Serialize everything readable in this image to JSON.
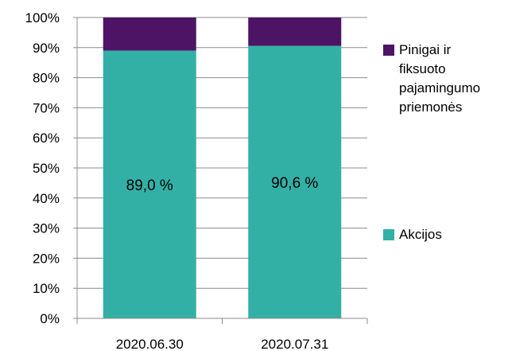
{
  "chart_data": {
    "type": "bar",
    "stacked": true,
    "percent_stacked": true,
    "categories": [
      "2020.06.30",
      "2020.07.31"
    ],
    "series": [
      {
        "name": "Akcijos",
        "values": [
          89.0,
          90.6
        ],
        "color": "#33b0a6",
        "labels": [
          "89,0 %",
          "90,6 %"
        ]
      },
      {
        "name": "Pinigai ir fiksuoto pajamingumo priemonės",
        "values": [
          11.0,
          9.4
        ],
        "color": "#4d1466"
      }
    ],
    "ylim": [
      0,
      100
    ],
    "yticks": [
      "0%",
      "10%",
      "20%",
      "30%",
      "40%",
      "50%",
      "60%",
      "70%",
      "80%",
      "90%",
      "100%"
    ],
    "grid": true,
    "legend": {
      "position": "right",
      "entries": [
        {
          "series": 1,
          "lines": [
            "Pinigai ir",
            "fiksuoto",
            "pajamingumo",
            "priemonės"
          ]
        },
        {
          "series": 0,
          "lines": [
            "Akcijos"
          ]
        }
      ]
    }
  }
}
